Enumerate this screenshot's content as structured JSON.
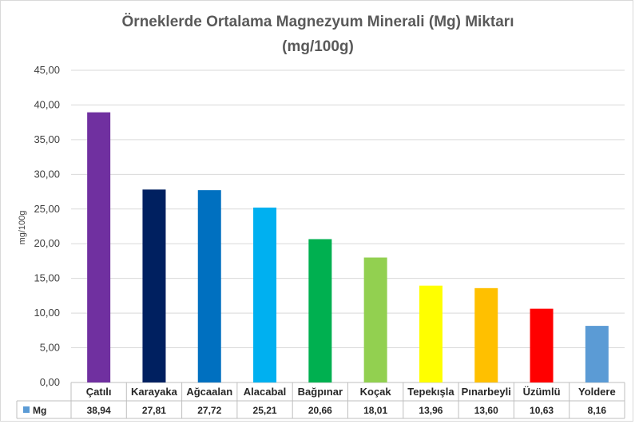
{
  "chart_data": {
    "type": "bar",
    "title_line1": "Örneklerde Ortalama Magnezyum Minerali (Mg)  Miktarı",
    "title_line2": "(mg/100g)",
    "ylabel": "mg/100g",
    "ylim": [
      0,
      45
    ],
    "yticks": [
      "0,00",
      "5,00",
      "10,00",
      "15,00",
      "20,00",
      "25,00",
      "30,00",
      "35,00",
      "40,00",
      "45,00"
    ],
    "grid": true,
    "categories": [
      "Çatılı",
      "Karayaka",
      "Ağcaalan",
      "Alacabal",
      "Bağpınar",
      "Koçak",
      "Tepekışla",
      "Pınarbeyli",
      "Üzümlü",
      "Yoldere"
    ],
    "series": [
      {
        "name": "Mg",
        "values": [
          38.94,
          27.81,
          27.72,
          25.21,
          20.66,
          18.01,
          13.96,
          13.6,
          10.63,
          8.16
        ],
        "value_labels": [
          "38,94",
          "27,81",
          "27,72",
          "25,21",
          "20,66",
          "18,01",
          "13,96",
          "13,60",
          "10,63",
          "8,16"
        ],
        "legend_color": "#5b9bd5"
      }
    ],
    "bar_colors": [
      "#7030a0",
      "#002060",
      "#0070c0",
      "#00b0f0",
      "#00b050",
      "#92d050",
      "#ffff00",
      "#ffc000",
      "#ff0000",
      "#5b9bd5"
    ],
    "data_table": true
  }
}
